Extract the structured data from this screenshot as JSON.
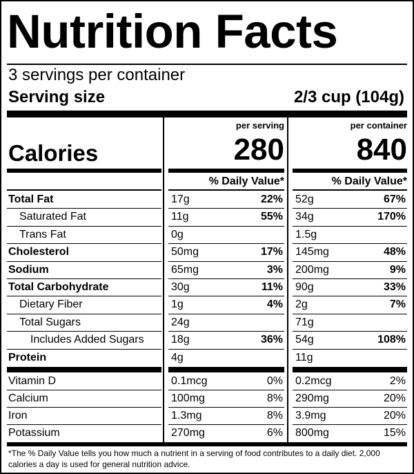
{
  "title": "Nutrition Facts",
  "servings_per_container": "3 servings per container",
  "serving_size_label": "Serving size",
  "serving_size_value": "2/3 cup (104g)",
  "calories_label": "Calories",
  "per_serving_label": "per serving",
  "per_container_label": "per container",
  "calories_per_serving": "280",
  "calories_per_container": "840",
  "daily_value_header": "% Daily Value*",
  "nutrients": [
    {
      "name": "Total Fat",
      "bold": true,
      "indent": 0,
      "serving_amount": "17g",
      "serving_dv": "22%",
      "container_amount": "52g",
      "container_dv": "67%"
    },
    {
      "name": "Saturated Fat",
      "bold": false,
      "indent": 1,
      "serving_amount": "11g",
      "serving_dv": "55%",
      "container_amount": "34g",
      "container_dv": "170%"
    },
    {
      "name": "Trans Fat",
      "bold": false,
      "indent": 1,
      "serving_amount": "0g",
      "serving_dv": "",
      "container_amount": "1.5g",
      "container_dv": ""
    },
    {
      "name": "Cholesterol",
      "bold": true,
      "indent": 0,
      "serving_amount": "50mg",
      "serving_dv": "17%",
      "container_amount": "145mg",
      "container_dv": "48%"
    },
    {
      "name": "Sodium",
      "bold": true,
      "indent": 0,
      "serving_amount": "65mg",
      "serving_dv": "3%",
      "container_amount": "200mg",
      "container_dv": "9%"
    },
    {
      "name": "Total Carbohydrate",
      "bold": true,
      "indent": 0,
      "serving_amount": "30g",
      "serving_dv": "11%",
      "container_amount": "90g",
      "container_dv": "33%"
    },
    {
      "name": "Dietary Fiber",
      "bold": false,
      "indent": 1,
      "serving_amount": "1g",
      "serving_dv": "4%",
      "container_amount": "2g",
      "container_dv": "7%"
    },
    {
      "name": "Total Sugars",
      "bold": false,
      "indent": 1,
      "serving_amount": "24g",
      "serving_dv": "",
      "container_amount": "71g",
      "container_dv": ""
    },
    {
      "name": "Includes Added Sugars",
      "bold": false,
      "indent": 2,
      "serving_amount": "18g",
      "serving_dv": "36%",
      "container_amount": "54g",
      "container_dv": "108%"
    },
    {
      "name": "Protein",
      "bold": true,
      "indent": 0,
      "serving_amount": "4g",
      "serving_dv": "",
      "container_amount": "11g",
      "container_dv": ""
    }
  ],
  "vitamins": [
    {
      "name": "Vitamin D",
      "serving_amount": "0.1mcg",
      "serving_dv": "0%",
      "container_amount": "0.2mcg",
      "container_dv": "2%"
    },
    {
      "name": "Calcium",
      "serving_amount": "100mg",
      "serving_dv": "8%",
      "container_amount": "290mg",
      "container_dv": "20%"
    },
    {
      "name": "Iron",
      "serving_amount": "1.3mg",
      "serving_dv": "8%",
      "container_amount": "3.9mg",
      "container_dv": "20%"
    },
    {
      "name": "Potassium",
      "serving_amount": "270mg",
      "serving_dv": "6%",
      "container_amount": "800mg",
      "container_dv": "15%"
    }
  ],
  "footnote": "*The % Daily Value tells you how much a nutrient in a serving of food contributes to a daily diet. 2,000 calories a day is used for general nutrition advice."
}
